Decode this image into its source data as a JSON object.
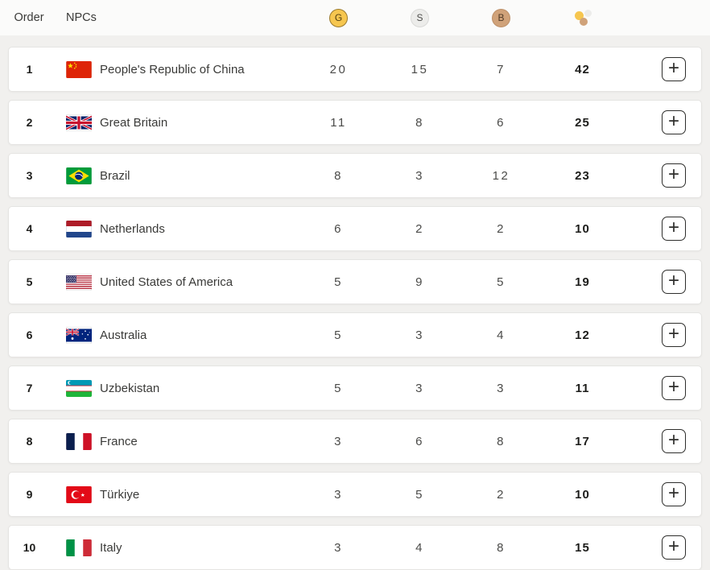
{
  "header": {
    "order_label": "Order",
    "npcs_label": "NPCs",
    "gold_label": "G",
    "silver_label": "S",
    "bronze_label": "B"
  },
  "colors": {
    "gold": "#f6c64f",
    "silver": "#ececea",
    "bronze": "#d0a279"
  },
  "row_action_label": "+",
  "rows": [
    {
      "order": "1",
      "flag": "cn",
      "npc": "People's Republic of China",
      "gold": "20",
      "silver": "15",
      "bronze": "7",
      "total": "42"
    },
    {
      "order": "2",
      "flag": "gb",
      "npc": "Great Britain",
      "gold": "11",
      "silver": "8",
      "bronze": "6",
      "total": "25"
    },
    {
      "order": "3",
      "flag": "br",
      "npc": "Brazil",
      "gold": "8",
      "silver": "3",
      "bronze": "12",
      "total": "23"
    },
    {
      "order": "4",
      "flag": "nl",
      "npc": "Netherlands",
      "gold": "6",
      "silver": "2",
      "bronze": "2",
      "total": "10"
    },
    {
      "order": "5",
      "flag": "us",
      "npc": "United States of America",
      "gold": "5",
      "silver": "9",
      "bronze": "5",
      "total": "19"
    },
    {
      "order": "6",
      "flag": "au",
      "npc": "Australia",
      "gold": "5",
      "silver": "3",
      "bronze": "4",
      "total": "12"
    },
    {
      "order": "7",
      "flag": "uz",
      "npc": "Uzbekistan",
      "gold": "5",
      "silver": "3",
      "bronze": "3",
      "total": "11"
    },
    {
      "order": "8",
      "flag": "fr",
      "npc": "France",
      "gold": "3",
      "silver": "6",
      "bronze": "8",
      "total": "17"
    },
    {
      "order": "9",
      "flag": "tr",
      "npc": "Türkiye",
      "gold": "3",
      "silver": "5",
      "bronze": "2",
      "total": "10"
    },
    {
      "order": "10",
      "flag": "it",
      "npc": "Italy",
      "gold": "3",
      "silver": "4",
      "bronze": "8",
      "total": "15"
    }
  ]
}
